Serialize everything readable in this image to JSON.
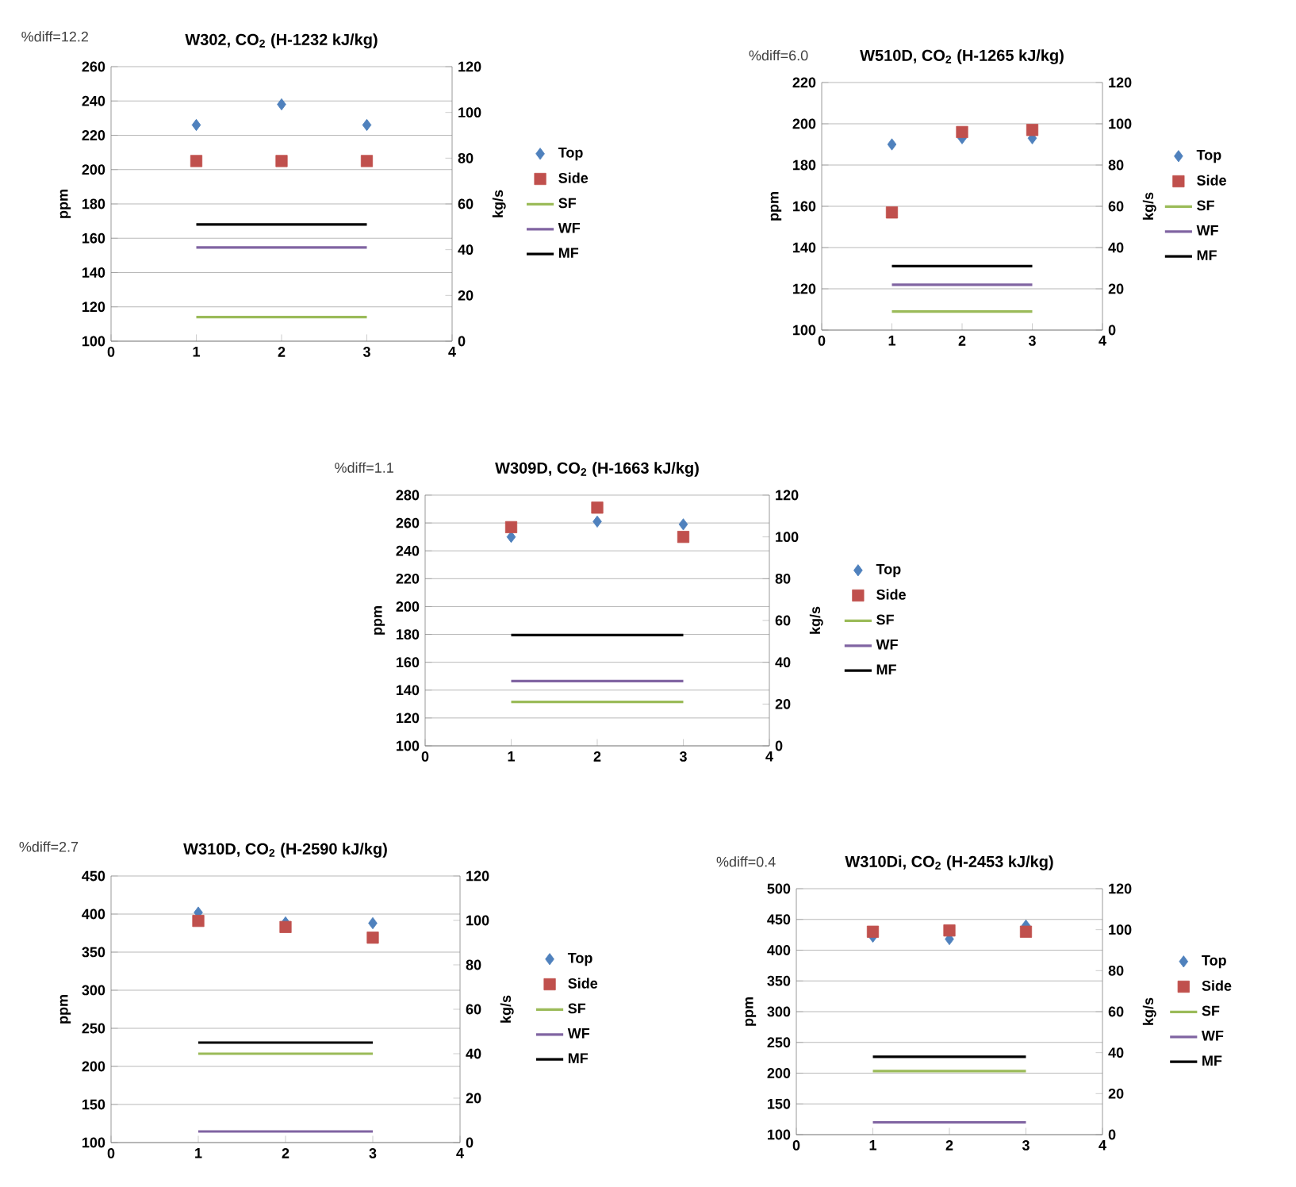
{
  "chart_data": [
    {
      "type": "scatter",
      "title": "W302, CO$_{2}$ (H-1232 kJ/kg)",
      "annotations": [
        "%diff=12.2"
      ],
      "ylabel": "ppm",
      "y2label": "kg/s",
      "xlim": [
        0,
        4
      ],
      "xticks": [
        0,
        1,
        2,
        3,
        4
      ],
      "ylim": [
        100,
        260
      ],
      "yticks": [
        100,
        120,
        140,
        160,
        180,
        200,
        220,
        240,
        260
      ],
      "y2lim": [
        0,
        120
      ],
      "y2ticks": [
        0,
        20,
        40,
        60,
        80,
        100,
        120
      ],
      "grid": "y",
      "legend": "right",
      "x": [
        1,
        2,
        3
      ],
      "series": [
        {
          "name": "Top",
          "marker": "diamond",
          "color": "#4f81bd",
          "values": [
            226,
            238,
            226
          ]
        },
        {
          "name": "Side",
          "marker": "square",
          "color": "#c0504d",
          "values": [
            205,
            205,
            205
          ]
        },
        {
          "name": "SF",
          "type": "line",
          "axis": "y2",
          "color": "#9bbb59",
          "values": [
            10.5,
            10.5,
            10.5
          ]
        },
        {
          "name": "WF",
          "type": "line",
          "axis": "y2",
          "color": "#8064a2",
          "values": [
            41,
            41,
            41
          ]
        },
        {
          "name": "MF",
          "type": "line",
          "axis": "y2",
          "color": "#000000",
          "values": [
            51,
            51,
            51
          ]
        }
      ]
    },
    {
      "type": "scatter",
      "title": "W510D, CO$_{2}$ (H-1265 kJ/kg)",
      "annotations": [
        "%diff=6.0"
      ],
      "ylabel": "ppm",
      "y2label": "kg/s",
      "xlim": [
        0,
        4
      ],
      "xticks": [
        0,
        1,
        2,
        3,
        4
      ],
      "ylim": [
        100,
        220
      ],
      "yticks": [
        100,
        120,
        140,
        160,
        180,
        200,
        220
      ],
      "y2lim": [
        0,
        120
      ],
      "y2ticks": [
        0,
        20,
        40,
        60,
        80,
        100,
        120
      ],
      "grid": "y",
      "legend": "right",
      "x": [
        1,
        2,
        3
      ],
      "series": [
        {
          "name": "Top",
          "marker": "diamond",
          "color": "#4f81bd",
          "values": [
            190,
            193,
            193
          ]
        },
        {
          "name": "Side",
          "marker": "square",
          "color": "#c0504d",
          "values": [
            157,
            196,
            197
          ]
        },
        {
          "name": "SF",
          "type": "line",
          "axis": "y2",
          "color": "#9bbb59",
          "values": [
            9,
            9,
            9
          ]
        },
        {
          "name": "WF",
          "type": "line",
          "axis": "y2",
          "color": "#8064a2",
          "values": [
            22,
            22,
            22
          ]
        },
        {
          "name": "MF",
          "type": "line",
          "axis": "y2",
          "color": "#000000",
          "values": [
            31,
            31,
            31
          ]
        }
      ]
    },
    {
      "type": "scatter",
      "title": "W309D, CO$_{2}$ (H-1663 kJ/kg)",
      "annotations": [
        "%diff=1.1"
      ],
      "ylabel": "ppm",
      "y2label": "kg/s",
      "xlim": [
        0,
        4
      ],
      "xticks": [
        0,
        1,
        2,
        3,
        4
      ],
      "ylim": [
        100,
        280
      ],
      "yticks": [
        100,
        120,
        140,
        160,
        180,
        200,
        220,
        240,
        260,
        280
      ],
      "y2lim": [
        0,
        120
      ],
      "y2ticks": [
        0,
        20,
        40,
        60,
        80,
        100,
        120
      ],
      "grid": "y",
      "legend": "right",
      "x": [
        1,
        2,
        3
      ],
      "series": [
        {
          "name": "Top",
          "marker": "diamond",
          "color": "#4f81bd",
          "values": [
            250,
            261,
            259
          ]
        },
        {
          "name": "Side",
          "marker": "square",
          "color": "#c0504d",
          "values": [
            257,
            271,
            250
          ]
        },
        {
          "name": "SF",
          "type": "line",
          "axis": "y2",
          "color": "#9bbb59",
          "values": [
            21,
            21,
            21
          ]
        },
        {
          "name": "WF",
          "type": "line",
          "axis": "y2",
          "color": "#8064a2",
          "values": [
            31,
            31,
            31
          ]
        },
        {
          "name": "MF",
          "type": "line",
          "axis": "y2",
          "color": "#000000",
          "values": [
            53,
            53,
            53
          ]
        }
      ]
    },
    {
      "type": "scatter",
      "title": "W310D, CO$_{2}$ (H-2590 kJ/kg)",
      "annotations": [
        "%diff=2.7"
      ],
      "ylabel": "ppm",
      "y2label": "kg/s",
      "xlim": [
        0,
        4
      ],
      "xticks": [
        0,
        1,
        2,
        3,
        4
      ],
      "ylim": [
        100,
        450
      ],
      "yticks": [
        100,
        150,
        200,
        250,
        300,
        350,
        400,
        450
      ],
      "y2lim": [
        0,
        120
      ],
      "y2ticks": [
        0,
        20,
        40,
        60,
        80,
        100,
        120
      ],
      "grid": "y",
      "legend": "right",
      "x": [
        1,
        2,
        3
      ],
      "series": [
        {
          "name": "Top",
          "marker": "diamond",
          "color": "#4f81bd",
          "values": [
            402,
            389,
            388
          ]
        },
        {
          "name": "Side",
          "marker": "square",
          "color": "#c0504d",
          "values": [
            391,
            383,
            369
          ]
        },
        {
          "name": "SF",
          "type": "line",
          "axis": "y2",
          "color": "#9bbb59",
          "values": [
            40,
            40,
            40
          ]
        },
        {
          "name": "WF",
          "type": "line",
          "axis": "y2",
          "color": "#8064a2",
          "values": [
            5,
            5,
            5
          ]
        },
        {
          "name": "MF",
          "type": "line",
          "axis": "y2",
          "color": "#000000",
          "values": [
            45,
            45,
            45
          ]
        }
      ]
    },
    {
      "type": "scatter",
      "title": "W310Di, CO$_{2}$ (H-2453 kJ/kg)",
      "annotations": [
        "%diff=0.4"
      ],
      "ylabel": "ppm",
      "y2label": "kg/s",
      "xlim": [
        0,
        4
      ],
      "xticks": [
        0,
        1,
        2,
        3,
        4
      ],
      "ylim": [
        100,
        500
      ],
      "yticks": [
        100,
        150,
        200,
        250,
        300,
        350,
        400,
        450,
        500
      ],
      "y2lim": [
        0,
        120
      ],
      "y2ticks": [
        0,
        20,
        40,
        60,
        80,
        100,
        120
      ],
      "grid": "y",
      "legend": "right",
      "x": [
        1,
        2,
        3
      ],
      "series": [
        {
          "name": "Top",
          "marker": "diamond",
          "color": "#4f81bd",
          "values": [
            422,
            418,
            440
          ]
        },
        {
          "name": "Side",
          "marker": "square",
          "color": "#c0504d",
          "values": [
            430,
            432,
            430
          ]
        },
        {
          "name": "SF",
          "type": "line",
          "axis": "y2",
          "color": "#9bbb59",
          "values": [
            31,
            31,
            31
          ]
        },
        {
          "name": "WF",
          "type": "line",
          "axis": "y2",
          "color": "#8064a2",
          "values": [
            6,
            6,
            6
          ]
        },
        {
          "name": "MF",
          "type": "line",
          "axis": "y2",
          "color": "#000000",
          "values": [
            38,
            38,
            38
          ]
        }
      ]
    }
  ]
}
